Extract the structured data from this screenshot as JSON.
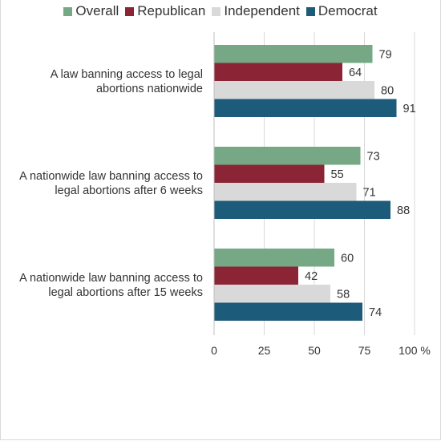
{
  "chart_data": {
    "type": "bar",
    "orientation": "horizontal",
    "categories": [
      "A law banning access to legal abortions nationwide",
      "A nationwide law banning access to legal abortions after 6 weeks",
      "A nationwide law banning access to legal abortions after 15 weeks"
    ],
    "category_lines": [
      [
        "A law banning access to legal",
        "abortions nationwide"
      ],
      [
        "A nationwide law banning access to",
        "legal abortions after 6 weeks"
      ],
      [
        "A nationwide law banning access to",
        "legal abortions after 15 weeks"
      ]
    ],
    "series": [
      {
        "name": "Overall",
        "color": "#76a886",
        "values": [
          79,
          73,
          60
        ]
      },
      {
        "name": "Republican",
        "color": "#8b2535",
        "values": [
          64,
          55,
          42
        ]
      },
      {
        "name": "Independent",
        "color": "#d9d9d9",
        "values": [
          80,
          71,
          58
        ]
      },
      {
        "name": "Democrat",
        "color": "#1c5b7a",
        "values": [
          91,
          88,
          74
        ]
      }
    ],
    "xlim": [
      0,
      100
    ],
    "xticks": [
      "0",
      "25",
      "50",
      "75",
      "100 %"
    ],
    "xtick_values": [
      0,
      25,
      50,
      75,
      100
    ],
    "grid": true,
    "legend_position": "top"
  }
}
